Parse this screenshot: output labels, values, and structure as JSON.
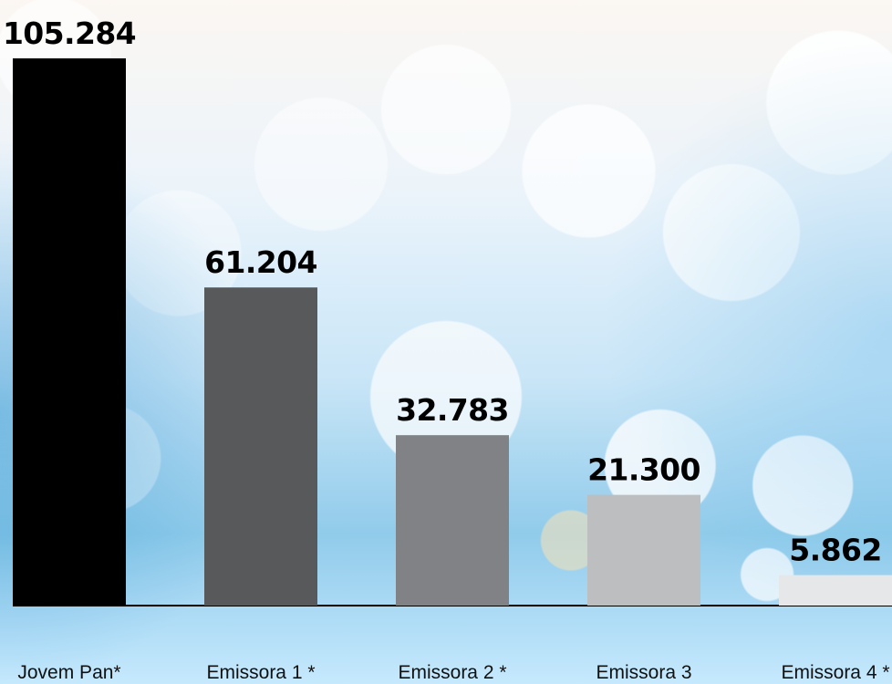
{
  "chart_data": {
    "type": "bar",
    "categories": [
      "Jovem Pan*",
      "Emissora 1 *",
      "Emissora 2 *",
      "Emissora 3",
      "Emissora 4 *"
    ],
    "values": [
      105284,
      61204,
      32783,
      21300,
      5862
    ],
    "value_labels": [
      "105.284",
      "61.204",
      "32.783",
      "21.300",
      "5.862"
    ],
    "ylim": [
      0,
      105284
    ],
    "bar_colors": [
      "#000000",
      "#58595b",
      "#808285",
      "#bcbec0",
      "#e6e7e8"
    ],
    "axis_color": "#000000",
    "grid": false
  }
}
